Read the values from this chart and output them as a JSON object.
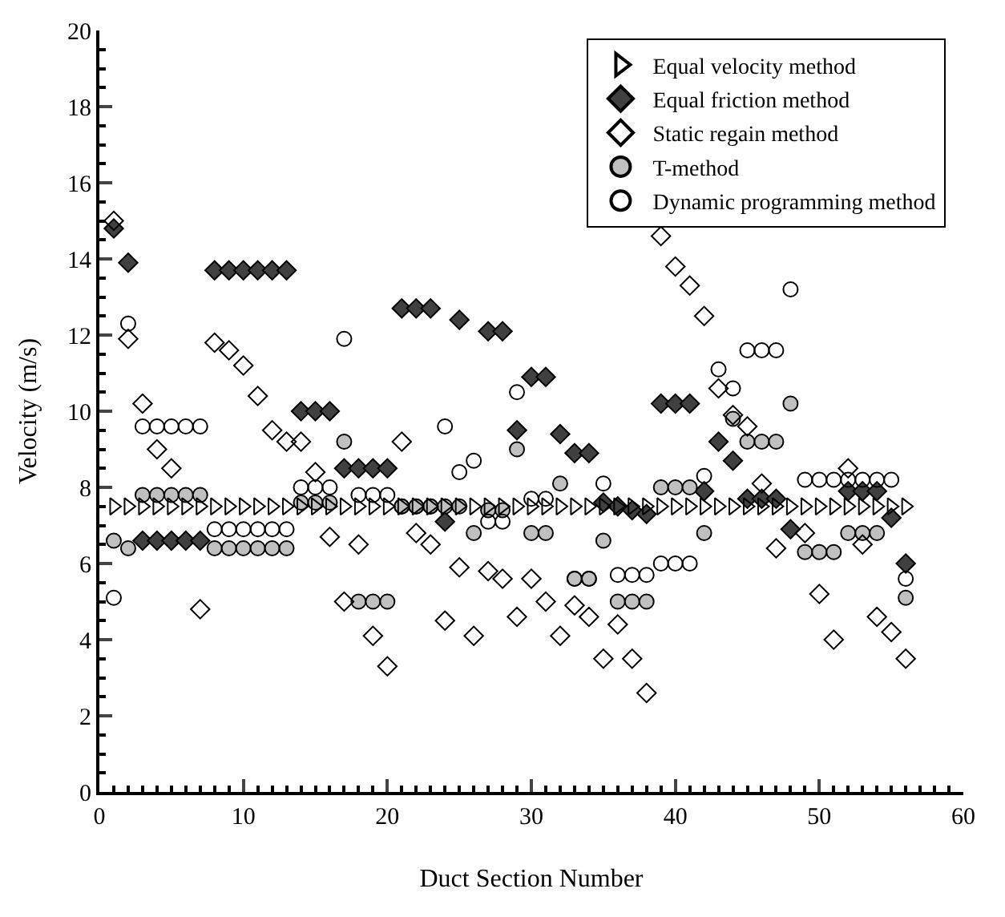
{
  "chart_data": {
    "type": "scatter",
    "xlabel": "Duct Section Number",
    "ylabel": "Velocity (m/s)",
    "xlim": [
      0,
      60
    ],
    "xticks": [
      0,
      10,
      20,
      30,
      40,
      50,
      60
    ],
    "ylim": [
      0,
      20
    ],
    "yticks": [
      0,
      2,
      4,
      6,
      8,
      10,
      12,
      14,
      16,
      18,
      20
    ],
    "grid": false,
    "legend": "top right",
    "x": [
      1,
      2,
      3,
      4,
      5,
      6,
      7,
      8,
      9,
      10,
      11,
      12,
      13,
      14,
      15,
      16,
      17,
      18,
      19,
      20,
      21,
      22,
      23,
      24,
      25,
      26,
      27,
      28,
      29,
      30,
      31,
      32,
      33,
      34,
      35,
      36,
      37,
      38,
      39,
      40,
      41,
      42,
      43,
      44,
      45,
      46,
      47,
      48,
      49,
      50,
      51,
      52,
      53,
      54,
      55,
      56
    ],
    "series": [
      {
        "name": "Equal velocity method",
        "marker": "triangle",
        "color": "#000000",
        "values": [
          7.5,
          7.5,
          7.5,
          7.5,
          7.5,
          7.5,
          7.5,
          7.5,
          7.5,
          7.5,
          7.5,
          7.5,
          7.5,
          7.5,
          7.5,
          7.5,
          7.5,
          7.5,
          7.5,
          7.5,
          7.5,
          7.5,
          7.5,
          7.5,
          7.5,
          7.5,
          7.5,
          7.5,
          7.5,
          7.5,
          7.5,
          7.5,
          7.5,
          7.5,
          7.5,
          7.5,
          7.5,
          7.5,
          7.5,
          7.5,
          7.5,
          7.5,
          7.5,
          7.5,
          7.5,
          7.5,
          7.5,
          7.5,
          7.5,
          7.5,
          7.5,
          7.5,
          7.5,
          7.5,
          7.5,
          7.5
        ]
      },
      {
        "name": "Equal friction method",
        "marker": "diamond",
        "color": "#404040",
        "values": [
          14.8,
          13.9,
          6.6,
          6.6,
          6.6,
          6.6,
          6.6,
          13.7,
          13.7,
          13.7,
          13.7,
          13.7,
          13.7,
          10.0,
          10.0,
          10.0,
          8.5,
          8.5,
          8.5,
          8.5,
          12.7,
          12.7,
          12.7,
          7.1,
          12.4,
          null,
          12.1,
          12.1,
          9.5,
          10.9,
          10.9,
          9.4,
          8.9,
          8.9,
          7.6,
          7.5,
          7.4,
          7.3,
          10.2,
          10.2,
          10.2,
          7.9,
          9.2,
          8.7,
          7.7,
          7.7,
          7.7,
          6.9,
          null,
          null,
          null,
          7.9,
          7.9,
          7.9,
          7.2,
          6.0
        ]
      },
      {
        "name": "Static regain method",
        "marker": "diamond",
        "color": "#000000",
        "values": [
          15.0,
          11.9,
          10.2,
          9.0,
          8.5,
          null,
          4.8,
          11.8,
          11.6,
          11.2,
          10.4,
          9.5,
          9.2,
          9.2,
          8.4,
          6.7,
          5.0,
          6.5,
          4.1,
          3.3,
          9.2,
          6.8,
          6.5,
          4.5,
          5.9,
          4.1,
          5.8,
          5.6,
          4.6,
          5.6,
          5.0,
          4.1,
          4.9,
          4.6,
          3.5,
          4.4,
          3.5,
          2.6,
          14.6,
          13.8,
          13.3,
          12.5,
          10.6,
          9.9,
          9.6,
          8.1,
          6.4,
          null,
          6.8,
          5.2,
          4.0,
          8.5,
          6.5,
          4.6,
          4.2,
          3.5
        ]
      },
      {
        "name": "T-method",
        "marker": "circle",
        "color": "#c0c0c0",
        "values": [
          6.6,
          6.4,
          7.8,
          7.8,
          7.8,
          7.8,
          7.8,
          6.4,
          6.4,
          6.4,
          6.4,
          6.4,
          6.4,
          7.6,
          7.6,
          7.6,
          9.2,
          5.0,
          5.0,
          5.0,
          7.5,
          7.5,
          7.5,
          7.5,
          7.5,
          6.8,
          7.4,
          7.4,
          9.0,
          6.8,
          6.8,
          8.1,
          5.6,
          5.6,
          6.6,
          5.0,
          5.0,
          5.0,
          8.0,
          8.0,
          8.0,
          6.8,
          null,
          9.8,
          9.2,
          9.2,
          9.2,
          10.2,
          6.3,
          6.3,
          6.3,
          6.8,
          6.8,
          6.8,
          null,
          5.1
        ]
      },
      {
        "name": "Dynamic programming method",
        "marker": "circle",
        "color": "#000000",
        "values": [
          5.1,
          12.3,
          9.6,
          9.6,
          9.6,
          9.6,
          9.6,
          6.9,
          6.9,
          6.9,
          6.9,
          6.9,
          6.9,
          8.0,
          8.0,
          8.0,
          11.9,
          7.8,
          7.8,
          7.8,
          7.5,
          7.5,
          7.5,
          9.6,
          8.4,
          8.7,
          7.1,
          7.1,
          10.5,
          7.7,
          7.7,
          null,
          5.6,
          5.6,
          8.1,
          5.7,
          5.7,
          5.7,
          6.0,
          6.0,
          6.0,
          8.3,
          11.1,
          10.6,
          11.6,
          11.6,
          11.6,
          13.2,
          8.2,
          8.2,
          8.2,
          8.2,
          8.2,
          8.2,
          8.2,
          5.6
        ]
      }
    ]
  }
}
